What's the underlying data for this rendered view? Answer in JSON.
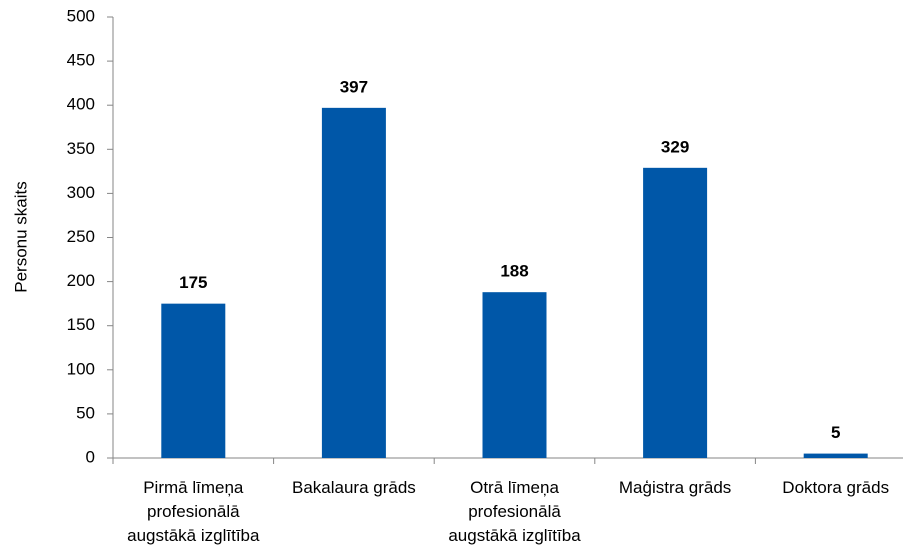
{
  "chart_data": {
    "type": "bar",
    "y_label": "Personu skaits",
    "categories": [
      "Pirmā līmeņa profesionālā augstākā izglītība",
      "Bakalaura grāds",
      "Otrā līmeņa profesionālā augstākā izglītība",
      "Maģistra grāds",
      "Doktora grāds"
    ],
    "values": [
      175,
      397,
      188,
      329,
      5
    ],
    "color": "#0057a8",
    "ylim": [
      0,
      500
    ],
    "yticks": [
      0,
      50,
      100,
      150,
      200,
      250,
      300,
      350,
      400,
      450,
      500
    ],
    "grid": false
  }
}
